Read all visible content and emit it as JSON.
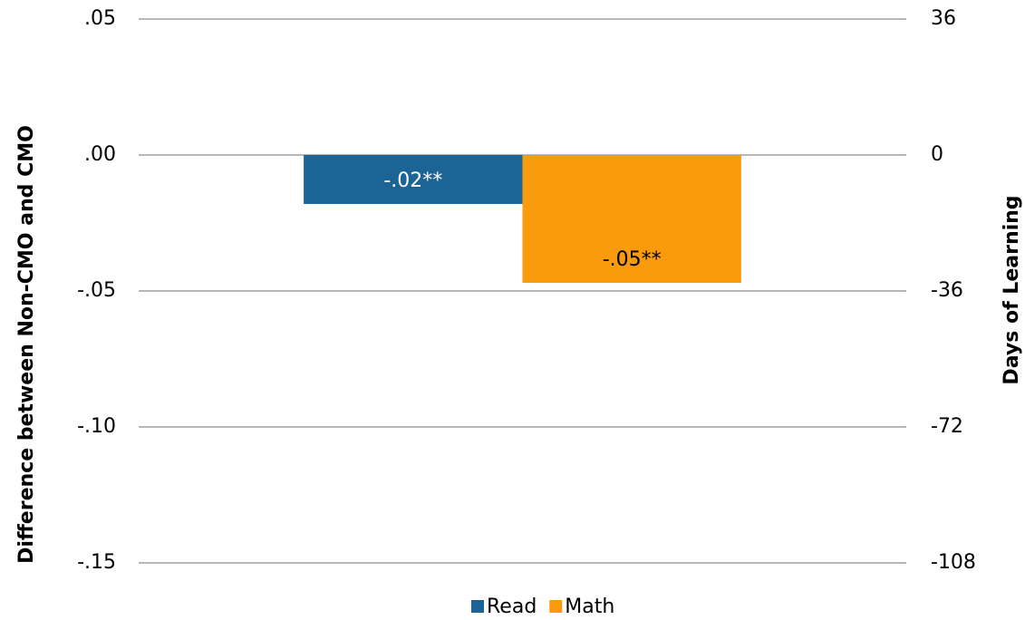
{
  "chart_data": {
    "type": "bar",
    "y_label": "Difference between Non-CMO and CMO",
    "y2_label": "Days of Learning",
    "categories": [
      null
    ],
    "series": [
      {
        "name": "Read",
        "color": "#1c6496",
        "values": [
          -0.018
        ],
        "value_labels": [
          "-.02**"
        ]
      },
      {
        "name": "Math",
        "color": "#f99b0c",
        "values": [
          -0.047
        ],
        "value_labels": [
          "-.05**"
        ]
      }
    ],
    "ylim": [
      -0.15,
      0.05
    ],
    "yticks": [
      {
        "value": 0.05,
        "label": ".05"
      },
      {
        "value": 0,
        "label": ".00"
      },
      {
        "value": -0.05,
        "label": "-.05"
      },
      {
        "value": -0.1,
        "label": "-.10"
      },
      {
        "value": -0.15,
        "label": "-.15"
      }
    ],
    "y2lim": [
      -108,
      36
    ],
    "y2ticks": [
      36,
      0,
      -36,
      -72,
      -108
    ],
    "grid": true,
    "legend": "bottom"
  }
}
